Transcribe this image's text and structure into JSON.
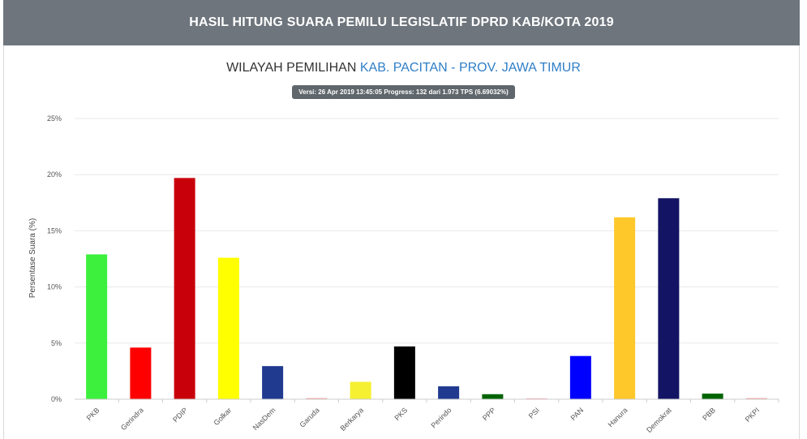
{
  "header": {
    "title": "HASIL HITUNG SUARA PEMILU LEGISLATIF DPRD KAB/KOTA 2019"
  },
  "subtitle": {
    "prefix": "WILAYAH PEMILIHAN",
    "region": "KAB. PACITAN - PROV. JAWA TIMUR"
  },
  "badge": {
    "text": "Versi: 26 Apr 2019 13:45:05 Progress: 132 dari 1.973 TPS (6.69032%)"
  },
  "chart_data": {
    "type": "bar",
    "title": "",
    "xlabel": "",
    "ylabel": "Persentase Suara (%)",
    "ylim": [
      0,
      25
    ],
    "yticks": [
      0,
      5,
      10,
      15,
      20,
      25
    ],
    "ytick_labels": [
      "0%",
      "5%",
      "10%",
      "15%",
      "20%",
      "25%"
    ],
    "grid": true,
    "categories": [
      "PKB",
      "Gerindra",
      "PDIP",
      "Golkar",
      "NasDem",
      "Garuda",
      "Berkarya",
      "PKS",
      "Perindo",
      "PPP",
      "PSI",
      "PAN",
      "Hanura",
      "Demokrat",
      "PBB",
      "PKPI"
    ],
    "values": [
      12.9,
      4.6,
      19.7,
      12.6,
      2.95,
      0.1,
      1.55,
      4.7,
      1.15,
      0.45,
      0.05,
      3.85,
      16.2,
      17.9,
      0.5,
      0.1
    ],
    "colors": [
      "#3df03d",
      "#ff0000",
      "#c8000a",
      "#ffff00",
      "#1f3a8f",
      "#f5a0a0",
      "#f5f032",
      "#000000",
      "#1f3a8f",
      "#006400",
      "#ff9cb0",
      "#0000ff",
      "#ffc82a",
      "#141464",
      "#006400",
      "#f5a0a0"
    ]
  }
}
